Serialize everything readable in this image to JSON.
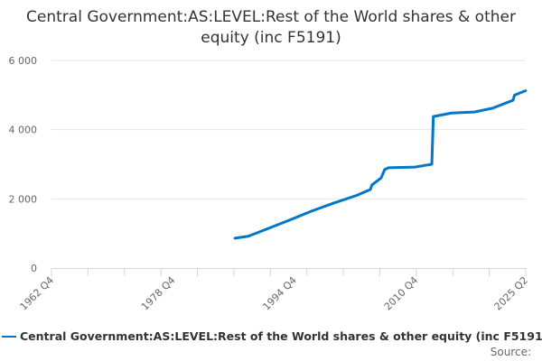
{
  "chart_data": {
    "type": "line",
    "title": "Central Government:AS:LEVEL:Rest of the World shares & other equity (inc F5191)",
    "xlabel": "",
    "ylabel": "",
    "xlim": [
      1962.875,
      2025.375
    ],
    "ylim": [
      0,
      6000
    ],
    "y_ticks": [
      0,
      2000,
      4000,
      6000
    ],
    "y_tick_labels": [
      "0",
      "2 000",
      "4 000",
      "6 000"
    ],
    "x_tick_labels": [
      {
        "label": "1962 Q4",
        "x": 1962.875
      },
      {
        "label": "1978 Q4",
        "x": 1978.875
      },
      {
        "label": "1994 Q4",
        "x": 1994.875
      },
      {
        "label": "2010 Q4",
        "x": 2010.875
      },
      {
        "label": "2025 Q2",
        "x": 2025.375
      }
    ],
    "grid": true,
    "legend_position": "bottom",
    "series": [
      {
        "name": "Central Government:AS:LEVEL:Rest of the World shares & other equity (inc F5191)",
        "color": "#0077c8",
        "x": [
          1987.0,
          1988.8,
          1990.0,
          1994.4,
          1997.2,
          2000.1,
          2003.1,
          2004.9,
          2005.1,
          2006.3,
          2006.8,
          2007.3,
          2010.8,
          2013.0,
          2013.2,
          2015.6,
          2018.6,
          2021.0,
          2023.7,
          2023.9,
          2025.4
        ],
        "y": [
          860,
          920,
          1020,
          1400,
          1650,
          1880,
          2100,
          2270,
          2400,
          2600,
          2850,
          2900,
          2920,
          3000,
          4380,
          4480,
          4510,
          4620,
          4850,
          5000,
          5130
        ]
      }
    ]
  },
  "source_label": "Source:"
}
